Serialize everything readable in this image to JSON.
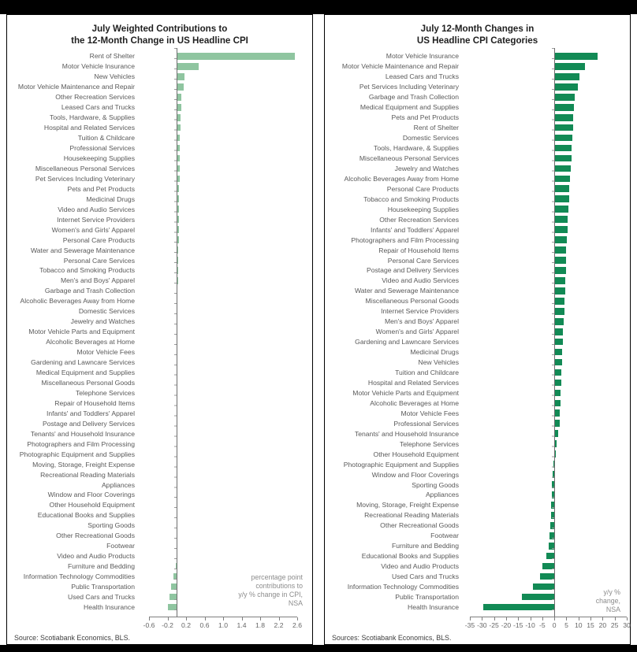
{
  "page": {
    "band_color": "#000000",
    "background": "#ffffff"
  },
  "chart_data": [
    {
      "type": "bar",
      "orientation": "horizontal",
      "title_line1": "July Weighted Contributions to",
      "title_line2": "the 12-Month Change in US Headline CPI",
      "bar_color": "#8fc5a0",
      "axis": {
        "min": -0.6,
        "max": 2.6,
        "tick_values": [
          -0.6,
          -0.2,
          0.2,
          0.6,
          1.0,
          1.4,
          1.8,
          2.2,
          2.6
        ],
        "tick_labels": [
          "-0.6",
          "-0.2",
          "0.2",
          "0.6",
          "1.0",
          "1.4",
          "1.8",
          "2.2",
          "2.6"
        ],
        "grid": false
      },
      "annotation_lines": [
        "percentage point",
        "contributions to",
        "y/y % change in CPI,",
        "NSA"
      ],
      "source": "Source: Scotiabank Economics, BLS.",
      "categories": [
        "Rent of Shelter",
        "Motor Vehicle Insurance",
        "New Vehicles",
        "Motor Vehicle Maintenance and Repair",
        "Other Recreation Services",
        "Leased Cars and Trucks",
        "Tools, Hardware, & Supplies",
        "Hospital and Related Services",
        "Tuition & Childcare",
        "Professional Services",
        "Housekeeping Supplies",
        "Miscellaneous Personal Services",
        "Pet Services Including Veterinary",
        "Pets and Pet Products",
        "Medicinal Drugs",
        "Video and Audio Services",
        "Internet Service Providers",
        "Women's and Girls' Apparel",
        "Personal Care Products",
        "Water and Sewerage Maintenance",
        "Personal Care Services",
        "Tobacco and Smoking Products",
        "Men's and Boys' Apparel",
        "Garbage and Trash Collection",
        "Alcoholic Beverages Away from Home",
        "Domestic Services",
        "Jewelry and Watches",
        "Motor Vehicle Parts and Equipment",
        "Alcoholic Beverages at Home",
        "Motor Vehicle Fees",
        "Gardening and Lawncare Services",
        "Medical Equipment and Supplies",
        "Miscellaneous Personal Goods",
        "Telephone Services",
        "Repair of Household Items",
        "Infants' and Toddlers' Apparel",
        "Postage and Delivery Services",
        "Tenants' and Household Insurance",
        "Photographers and Film Processing",
        "Photographic Equipment and Supplies",
        "Moving, Storage, Freight Expense",
        "Recreational Reading Materials",
        "Appliances",
        "Window and Floor Coverings",
        "Other Household Equipment",
        "Educational Books and Supplies",
        "Sporting Goods",
        "Other Recreational Goods",
        "Footwear",
        "Video and Audio Products",
        "Furniture and Bedding",
        "Information Technology Commodities",
        "Public Transportation",
        "Used Cars and Trucks",
        "Health Insurance"
      ],
      "values": [
        2.55,
        0.47,
        0.16,
        0.15,
        0.1,
        0.09,
        0.08,
        0.08,
        0.07,
        0.07,
        0.06,
        0.06,
        0.06,
        0.05,
        0.05,
        0.05,
        0.04,
        0.04,
        0.04,
        0.03,
        0.03,
        0.03,
        0.03,
        0.02,
        0.02,
        0.02,
        0.02,
        0.02,
        0.01,
        0.01,
        0.01,
        0.01,
        0.01,
        0.01,
        0.01,
        0.01,
        0.01,
        0.01,
        0.0,
        0.0,
        0.0,
        0.0,
        0.0,
        0.0,
        0.0,
        0.0,
        0.0,
        0.0,
        0.0,
        -0.01,
        -0.02,
        -0.08,
        -0.12,
        -0.16,
        -0.2
      ]
    },
    {
      "type": "bar",
      "orientation": "horizontal",
      "title_line1": "July 12-Month Changes in",
      "title_line2": "US Headline CPI Categories",
      "bar_color": "#128a55",
      "axis": {
        "min": -35,
        "max": 30,
        "tick_values": [
          -35,
          -30,
          -25,
          -20,
          -15,
          -10,
          -5,
          0,
          5,
          10,
          15,
          20,
          25,
          30
        ],
        "tick_labels": [
          "-35",
          "-30",
          "-25",
          "-20",
          "-15",
          "-10",
          "-5",
          "0",
          "5",
          "10",
          "15",
          "20",
          "25",
          "30"
        ],
        "grid": false
      },
      "annotation_lines": [
        "y/y %",
        "change,",
        "NSA"
      ],
      "source": "Sources: Scotiabank Economics, BLS.",
      "categories": [
        "Motor Vehicle Insurance",
        "Motor Vehicle Maintenance and Repair",
        "Leased Cars and Trucks",
        "Pet Services Including Veterinary",
        "Garbage and Trash Collection",
        "Medical Equipment and Supplies",
        "Pets and Pet Products",
        "Rent of Shelter",
        "Domestic Services",
        "Tools, Hardware, & Supplies",
        "Miscellaneous Personal Services",
        "Jewelry and Watches",
        "Alcoholic Beverages Away from Home",
        "Personal Care Products",
        "Tobacco and Smoking Products",
        "Housekeeping Supplies",
        "Other Recreation Services",
        "Infants' and Toddlers' Apparel",
        "Photographers and Film Processing",
        "Repair of Household Items",
        "Personal Care Services",
        "Postage and Delivery Services",
        "Video and Audio Services",
        "Water and Sewerage Maintenance",
        "Miscellaneous Personal Goods",
        "Internet Service Providers",
        "Men's and Boys' Apparel",
        "Women's and Girls' Apparel",
        "Gardening and Lawncare Services",
        "Medicinal Drugs",
        "New Vehicles",
        "Tuition and Childcare",
        "Hospital and Related Services",
        "Motor Vehicle Parts and Equipment",
        "Alcoholic Beverages at Home",
        "Motor Vehicle Fees",
        "Professional Services",
        "Tenants' and Household Insurance",
        "Telephone Services",
        "Other Household Equipment",
        "Photographic Equipment and Supplies",
        "Window and Floor Coverings",
        "Sporting Goods",
        "Appliances",
        "Moving, Storage, Freight Expense",
        "Recreational Reading Materials",
        "Other Recreational Goods",
        "Footwear",
        "Furniture and Bedding",
        "Educational Books and Supplies",
        "Video and Audio Products",
        "Used Cars and Trucks",
        "Information Technology Commodities",
        "Public Transportation",
        "Health Insurance"
      ],
      "values": [
        17.8,
        12.7,
        10.4,
        9.6,
        8.5,
        8.1,
        7.8,
        7.7,
        7.5,
        7.2,
        7.0,
        6.7,
        6.4,
        6.2,
        6.0,
        5.8,
        5.6,
        5.4,
        5.2,
        5.0,
        4.9,
        4.8,
        4.6,
        4.5,
        4.3,
        4.1,
        3.9,
        3.7,
        3.5,
        3.3,
        3.1,
        2.9,
        2.8,
        2.6,
        2.5,
        2.3,
        2.1,
        1.6,
        0.9,
        0.5,
        -0.5,
        -0.8,
        -1.0,
        -1.1,
        -1.2,
        -1.4,
        -1.6,
        -1.9,
        -2.4,
        -3.3,
        -4.9,
        -5.8,
        -8.9,
        -13.3,
        -29.3
      ]
    }
  ]
}
